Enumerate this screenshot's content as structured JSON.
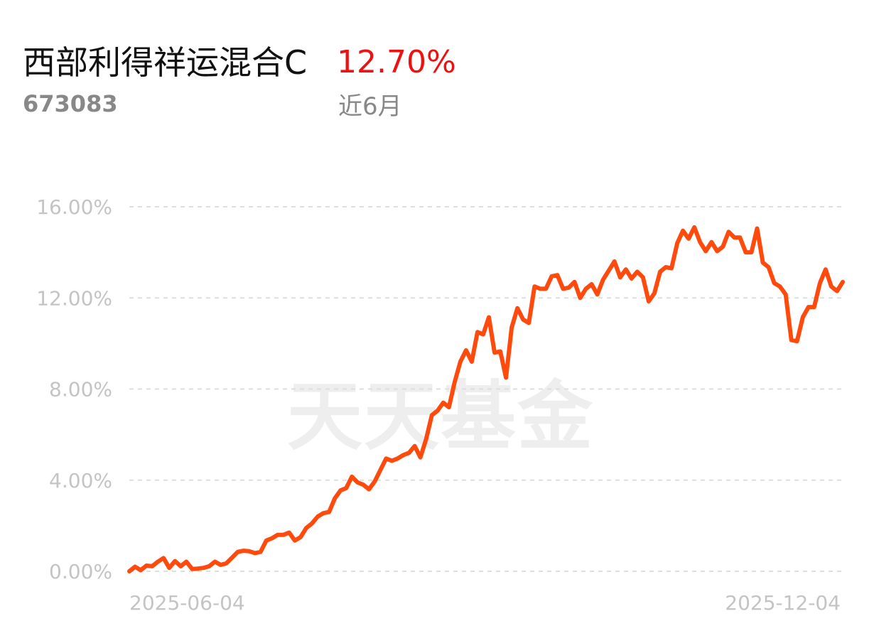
{
  "header": {
    "fund_name": "西部利得祥运混合C",
    "fund_return": "12.70%",
    "fund_code": "673083",
    "period_label": "近6月"
  },
  "watermark": "天天基金",
  "colors": {
    "line": "#ff4a0d",
    "return": "#ee1111"
  },
  "chart_data": {
    "type": "line",
    "title": "",
    "xlabel": "",
    "ylabel": "",
    "ylim": [
      0,
      16
    ],
    "y_ticks": [
      0,
      4,
      8,
      12,
      16
    ],
    "y_tick_labels": [
      "0.00%",
      "4.00%",
      "8.00%",
      "12.00%",
      "16.00%"
    ],
    "x_tick_labels": [
      "2025-06-04",
      "2025-12-04"
    ],
    "grid": true,
    "series": [
      {
        "values": [
          0.0,
          0.2,
          0.05,
          0.25,
          0.22,
          0.42,
          0.58,
          0.15,
          0.45,
          0.22,
          0.42,
          0.1,
          0.12,
          0.15,
          0.22,
          0.42,
          0.28,
          0.35,
          0.6,
          0.85,
          0.9,
          0.88,
          0.8,
          0.85,
          1.35,
          1.45,
          1.6,
          1.6,
          1.7,
          1.35,
          1.5,
          1.9,
          2.1,
          2.4,
          2.55,
          2.6,
          3.2,
          3.55,
          3.65,
          4.15,
          3.9,
          3.8,
          3.6,
          3.95,
          4.45,
          4.95,
          4.85,
          4.95,
          5.1,
          5.2,
          5.5,
          5.0,
          5.8,
          6.85,
          7.05,
          7.4,
          7.2,
          8.3,
          9.2,
          9.7,
          9.2,
          10.5,
          10.4,
          11.15,
          9.6,
          9.65,
          8.5,
          10.7,
          11.55,
          11.05,
          10.9,
          12.5,
          12.4,
          12.4,
          12.95,
          13.0,
          12.4,
          12.45,
          12.7,
          12.0,
          12.4,
          12.6,
          12.15,
          12.8,
          13.2,
          13.6,
          12.9,
          13.25,
          12.85,
          13.15,
          12.9,
          11.85,
          12.2,
          13.15,
          13.35,
          13.3,
          14.4,
          14.95,
          14.6,
          15.1,
          14.45,
          14.05,
          14.45,
          14.05,
          14.25,
          14.9,
          14.65,
          14.65,
          14.0,
          14.0,
          15.05,
          13.55,
          13.35,
          12.65,
          12.5,
          12.15,
          10.15,
          10.1,
          11.15,
          11.6,
          11.6,
          12.65,
          13.25,
          12.5,
          12.3,
          12.7
        ]
      }
    ]
  }
}
